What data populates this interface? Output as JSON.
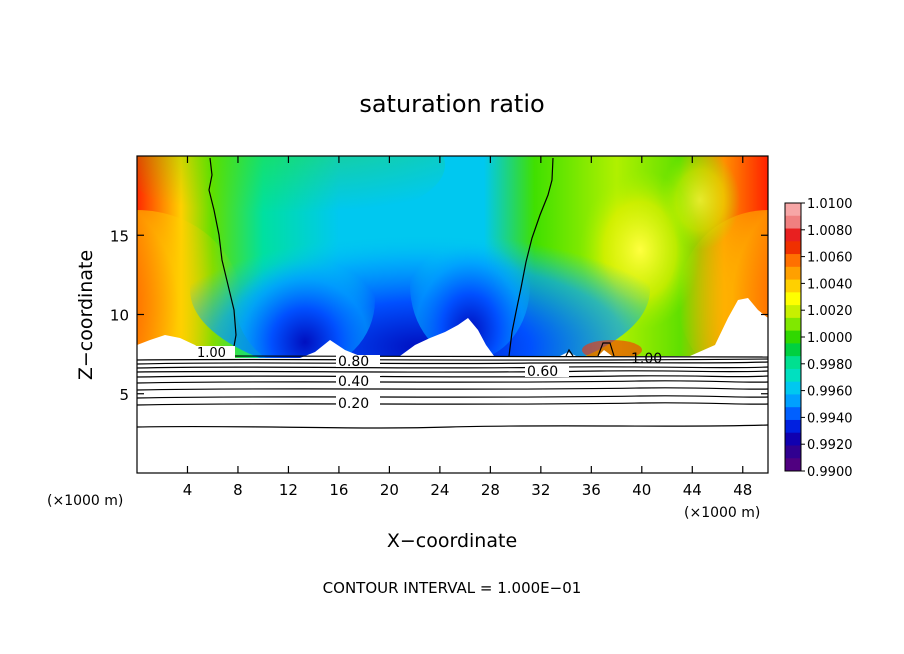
{
  "chart_data": {
    "type": "heatmap",
    "title": "saturation ratio",
    "xlabel": "X−coordinate",
    "ylabel": "Z−coordinate",
    "x_unit_left": "(×1000 m)",
    "x_unit_right": "(×1000 m)",
    "xlim": [
      0,
      50
    ],
    "ylim": [
      0,
      20
    ],
    "xticks": [
      4,
      8,
      12,
      16,
      20,
      24,
      28,
      32,
      36,
      40,
      44,
      48
    ],
    "xtick_labels": [
      "4",
      "8",
      "12",
      "16",
      "20",
      "24",
      "28",
      "32",
      "36",
      "40",
      "44",
      "48"
    ],
    "yticks": [
      5,
      10,
      15
    ],
    "ytick_labels": [
      "5",
      "10",
      "15"
    ],
    "footer": "CONTOUR INTERVAL = 1.000E−01",
    "colorbar": {
      "min": 0.99,
      "max": 1.01,
      "labels": [
        "1.0100",
        "1.0080",
        "1.0060",
        "1.0040",
        "1.0020",
        "1.0000",
        "0.9980",
        "0.9960",
        "0.9940",
        "0.9920",
        "0.9900"
      ],
      "colors": [
        "#f7a6a6",
        "#f08080",
        "#e82020",
        "#f03000",
        "#ff7000",
        "#ffa000",
        "#ffd000",
        "#ffff00",
        "#c8f000",
        "#80e800",
        "#30d800",
        "#00d040",
        "#00e090",
        "#00e0c0",
        "#00c8f0",
        "#00a0ff",
        "#0060ff",
        "#0020e0",
        "#1000b0",
        "#300090",
        "#500080"
      ]
    },
    "contour_labels": [
      "1.00",
      "0.80",
      "0.60",
      "0.40",
      "0.20",
      "1.00"
    ]
  }
}
